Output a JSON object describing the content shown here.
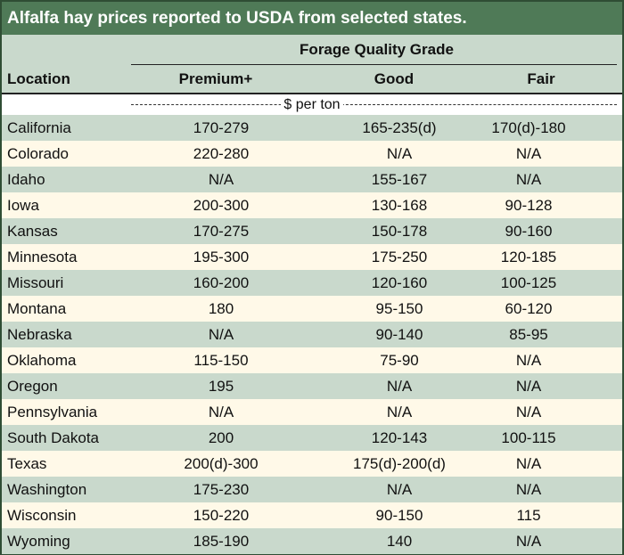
{
  "title": "Alfalfa hay prices reported to USDA from selected states.",
  "header": {
    "group_label": "Forage Quality Grade",
    "location_label": "Location",
    "grades": [
      "Premium+",
      "Good",
      "Fair"
    ]
  },
  "unit_label": "$ per ton",
  "rows": [
    {
      "location": "California",
      "premium": "170-279",
      "good": "165-235(d)",
      "fair": "170(d)-180"
    },
    {
      "location": "Colorado",
      "premium": "220-280",
      "good": "N/A",
      "fair": "N/A"
    },
    {
      "location": "Idaho",
      "premium": "N/A",
      "good": "155-167",
      "fair": "N/A"
    },
    {
      "location": "Iowa",
      "premium": "200-300",
      "good": "130-168",
      "fair": "90-128"
    },
    {
      "location": "Kansas",
      "premium": "170-275",
      "good": "150-178",
      "fair": "90-160"
    },
    {
      "location": "Minnesota",
      "premium": "195-300",
      "good": "175-250",
      "fair": "120-185"
    },
    {
      "location": "Missouri",
      "premium": "160-200",
      "good": "120-160",
      "fair": "100-125"
    },
    {
      "location": "Montana",
      "premium": "180",
      "good": "95-150",
      "fair": "60-120"
    },
    {
      "location": "Nebraska",
      "premium": "N/A",
      "good": "90-140",
      "fair": "85-95"
    },
    {
      "location": "Oklahoma",
      "premium": "115-150",
      "good": "75-90",
      "fair": "N/A"
    },
    {
      "location": "Oregon",
      "premium": "195",
      "good": "N/A",
      "fair": "N/A"
    },
    {
      "location": "Pennsylvania",
      "premium": "N/A",
      "good": "N/A",
      "fair": "N/A"
    },
    {
      "location": "South Dakota",
      "premium": "200",
      "good": "120-143",
      "fair": "100-115"
    },
    {
      "location": "Texas",
      "premium": "200(d)-300",
      "good": "175(d)-200(d)",
      "fair": "N/A"
    },
    {
      "location": "Washington",
      "premium": "175-230",
      "good": "N/A",
      "fair": "N/A"
    },
    {
      "location": "Wisconsin",
      "premium": "150-220",
      "good": "90-150",
      "fair": "115"
    },
    {
      "location": "Wyoming",
      "premium": "185-190",
      "good": "140",
      "fair": "N/A"
    }
  ],
  "colors": {
    "title_bg": "#4f7a57",
    "shade_row": "#c9d9cc",
    "plain_row": "#fff9e8",
    "border": "#2f4d34"
  }
}
